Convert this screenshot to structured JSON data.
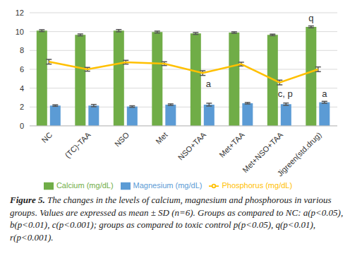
{
  "chart_data": {
    "type": "bar",
    "categories": [
      "NC",
      "(TC)-TAA",
      "NSO",
      "Met",
      "NSO+TAA",
      "Met+TAA",
      "Met+NSO+TAA",
      "Jigreen(std.drug)"
    ],
    "series": [
      {
        "name": "Calcium (mg/dL)",
        "type": "bar",
        "color": "#70ad47",
        "values": [
          10.1,
          9.65,
          10.1,
          9.95,
          9.8,
          9.9,
          9.65,
          10.5
        ],
        "errors": [
          0.1,
          0.1,
          0.12,
          0.1,
          0.1,
          0.08,
          0.08,
          0.1
        ]
      },
      {
        "name": "Magnesium (mg/dL)",
        "type": "bar",
        "color": "#5b9bd5",
        "values": [
          2.15,
          2.15,
          2.05,
          2.25,
          2.25,
          2.4,
          2.3,
          2.5
        ],
        "errors": [
          0.08,
          0.12,
          0.08,
          0.08,
          0.15,
          0.08,
          0.12,
          0.1
        ]
      },
      {
        "name": "Phosphorus (mg/dL)",
        "type": "line",
        "color": "#ffc000",
        "values": [
          6.8,
          6.0,
          6.75,
          6.6,
          5.6,
          6.55,
          4.6,
          6.0
        ],
        "errors": [
          0.25,
          0.2,
          0.2,
          0.2,
          0.25,
          0.2,
          0.25,
          0.25
        ]
      }
    ],
    "annotations": [
      {
        "category": "NSO+TAA",
        "series": "Phosphorus (mg/dL)",
        "text": "a"
      },
      {
        "category": "Met+NSO+TAA",
        "series": "Phosphorus (mg/dL)",
        "text": "c, p"
      },
      {
        "category": "Jigreen(std.drug)",
        "series": "Calcium (mg/dL)",
        "text": "q"
      },
      {
        "category": "Jigreen(std.drug)",
        "series": "Magnesium (mg/dL)",
        "text": "a"
      }
    ],
    "ylim": [
      0,
      12
    ],
    "yticks": [
      0,
      2,
      4,
      6,
      8,
      10,
      12
    ],
    "grid": true,
    "legend": "bottom",
    "caption_label": "Figure 5.",
    "caption": "The changes in the levels of calcium, magnesium and phosphorous in various groups. Values are expressed as mean ± SD (n=6). Groups as compared to NC: a(p<0.05), b(p<0.01), c(p<0.001); groups as compared to toxic control p(p<0.05), q(p<0.01), r(p<0.001)."
  }
}
